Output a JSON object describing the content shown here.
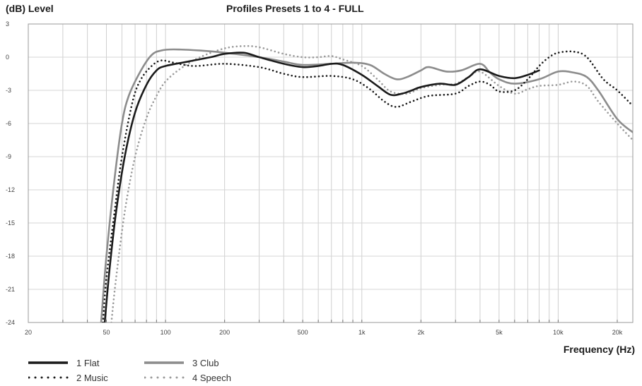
{
  "chart_data": {
    "type": "line",
    "title": "Profiles Presets 1 to 4 - FULL",
    "ylabel": "(dB) Level",
    "xlabel": "Frequency (Hz)",
    "x_scale": "log",
    "xlim": [
      20,
      24000
    ],
    "ylim": [
      -24,
      3
    ],
    "x_ticks": [
      {
        "value": 20,
        "label": "20"
      },
      {
        "value": 50,
        "label": "50"
      },
      {
        "value": 100,
        "label": "100"
      },
      {
        "value": 200,
        "label": "200"
      },
      {
        "value": 500,
        "label": "500"
      },
      {
        "value": 1000,
        "label": "1k"
      },
      {
        "value": 2000,
        "label": "2k"
      },
      {
        "value": 5000,
        "label": "5k"
      },
      {
        "value": 10000,
        "label": "10k"
      },
      {
        "value": 20000,
        "label": "20k"
      }
    ],
    "y_ticks": [
      3,
      0,
      -3,
      -6,
      -9,
      -12,
      -15,
      -18,
      -21,
      -24
    ],
    "grid": true,
    "legend_position": "bottom-left",
    "series": [
      {
        "name": "1 Flat",
        "color": "#1a1a1a",
        "style": "solid",
        "points": [
          [
            49,
            -24
          ],
          [
            52,
            -19
          ],
          [
            56,
            -14
          ],
          [
            62,
            -9
          ],
          [
            70,
            -5
          ],
          [
            80,
            -2.5
          ],
          [
            90,
            -1.2
          ],
          [
            100,
            -0.8
          ],
          [
            130,
            -0.4
          ],
          [
            170,
            0
          ],
          [
            200,
            0.3
          ],
          [
            250,
            0.4
          ],
          [
            300,
            0
          ],
          [
            400,
            -0.6
          ],
          [
            500,
            -0.9
          ],
          [
            600,
            -0.8
          ],
          [
            700,
            -0.6
          ],
          [
            800,
            -0.7
          ],
          [
            1000,
            -1.6
          ],
          [
            1200,
            -2.6
          ],
          [
            1400,
            -3.4
          ],
          [
            1600,
            -3.3
          ],
          [
            1800,
            -3
          ],
          [
            2000,
            -2.7
          ],
          [
            2500,
            -2.4
          ],
          [
            3000,
            -2.5
          ],
          [
            3500,
            -1.8
          ],
          [
            4000,
            -1.1
          ],
          [
            5000,
            -1.7
          ],
          [
            6000,
            -1.9
          ],
          [
            7000,
            -1.6
          ],
          [
            8000,
            -1.2
          ]
        ]
      },
      {
        "name": "2 Music",
        "color": "#1a1a1a",
        "style": "dotted",
        "points": [
          [
            48,
            -24
          ],
          [
            50,
            -20
          ],
          [
            55,
            -14
          ],
          [
            60,
            -9
          ],
          [
            68,
            -4
          ],
          [
            75,
            -2
          ],
          [
            85,
            -0.8
          ],
          [
            95,
            -0.3
          ],
          [
            110,
            -0.5
          ],
          [
            140,
            -0.8
          ],
          [
            200,
            -0.6
          ],
          [
            300,
            -0.9
          ],
          [
            400,
            -1.5
          ],
          [
            500,
            -1.8
          ],
          [
            700,
            -1.7
          ],
          [
            900,
            -2
          ],
          [
            1100,
            -2.9
          ],
          [
            1300,
            -4
          ],
          [
            1500,
            -4.5
          ],
          [
            1800,
            -4
          ],
          [
            2200,
            -3.5
          ],
          [
            3000,
            -3.3
          ],
          [
            3500,
            -2.6
          ],
          [
            4000,
            -2.2
          ],
          [
            4500,
            -2.5
          ],
          [
            5000,
            -3.1
          ],
          [
            6000,
            -3
          ],
          [
            7000,
            -2
          ],
          [
            8000,
            -0.8
          ],
          [
            9000,
            0
          ],
          [
            10000,
            0.4
          ],
          [
            12000,
            0.5
          ],
          [
            14000,
            0
          ],
          [
            17000,
            -2
          ],
          [
            20000,
            -3
          ],
          [
            24000,
            -4.4
          ]
        ]
      },
      {
        "name": "3 Club",
        "color": "#8c8c8c",
        "style": "solid",
        "points": [
          [
            47,
            -24
          ],
          [
            50,
            -18
          ],
          [
            55,
            -11
          ],
          [
            60,
            -6
          ],
          [
            65,
            -3.5
          ],
          [
            75,
            -1.2
          ],
          [
            85,
            0.2
          ],
          [
            95,
            0.6
          ],
          [
            110,
            0.7
          ],
          [
            150,
            0.6
          ],
          [
            200,
            0.4
          ],
          [
            300,
            0
          ],
          [
            400,
            -0.4
          ],
          [
            500,
            -0.7
          ],
          [
            700,
            -0.6
          ],
          [
            900,
            -0.5
          ],
          [
            1100,
            -0.7
          ],
          [
            1300,
            -1.5
          ],
          [
            1500,
            -2
          ],
          [
            1700,
            -1.8
          ],
          [
            2000,
            -1.2
          ],
          [
            2200,
            -0.9
          ],
          [
            2700,
            -1.3
          ],
          [
            3200,
            -1.2
          ],
          [
            4000,
            -0.6
          ],
          [
            4500,
            -1.4
          ],
          [
            5000,
            -2
          ],
          [
            6000,
            -2.4
          ],
          [
            8000,
            -2
          ],
          [
            10000,
            -1.3
          ],
          [
            12000,
            -1.4
          ],
          [
            14000,
            -1.8
          ],
          [
            16000,
            -3
          ],
          [
            20000,
            -5.6
          ],
          [
            24000,
            -6.8
          ]
        ]
      },
      {
        "name": "4 Speech",
        "color": "#9a9a9a",
        "style": "dotted",
        "points": [
          [
            53,
            -24
          ],
          [
            56,
            -20
          ],
          [
            62,
            -14
          ],
          [
            70,
            -9
          ],
          [
            80,
            -5.5
          ],
          [
            90,
            -3.5
          ],
          [
            100,
            -2.2
          ],
          [
            120,
            -1
          ],
          [
            150,
            0
          ],
          [
            200,
            0.8
          ],
          [
            250,
            1
          ],
          [
            300,
            0.9
          ],
          [
            400,
            0.3
          ],
          [
            500,
            0
          ],
          [
            600,
            0
          ],
          [
            700,
            0.1
          ],
          [
            800,
            -0.2
          ],
          [
            1000,
            -0.8
          ],
          [
            1200,
            -2
          ],
          [
            1400,
            -3.1
          ],
          [
            1700,
            -3.3
          ],
          [
            2000,
            -2.8
          ],
          [
            2500,
            -2.5
          ],
          [
            3000,
            -2.4
          ],
          [
            3500,
            -1.8
          ],
          [
            4000,
            -1.3
          ],
          [
            5000,
            -2.6
          ],
          [
            6000,
            -3.3
          ],
          [
            7000,
            -2.9
          ],
          [
            8000,
            -2.6
          ],
          [
            10000,
            -2.5
          ],
          [
            12000,
            -2.2
          ],
          [
            14000,
            -2.6
          ],
          [
            16000,
            -4
          ],
          [
            20000,
            -6
          ],
          [
            24000,
            -7.5
          ]
        ]
      }
    ]
  }
}
